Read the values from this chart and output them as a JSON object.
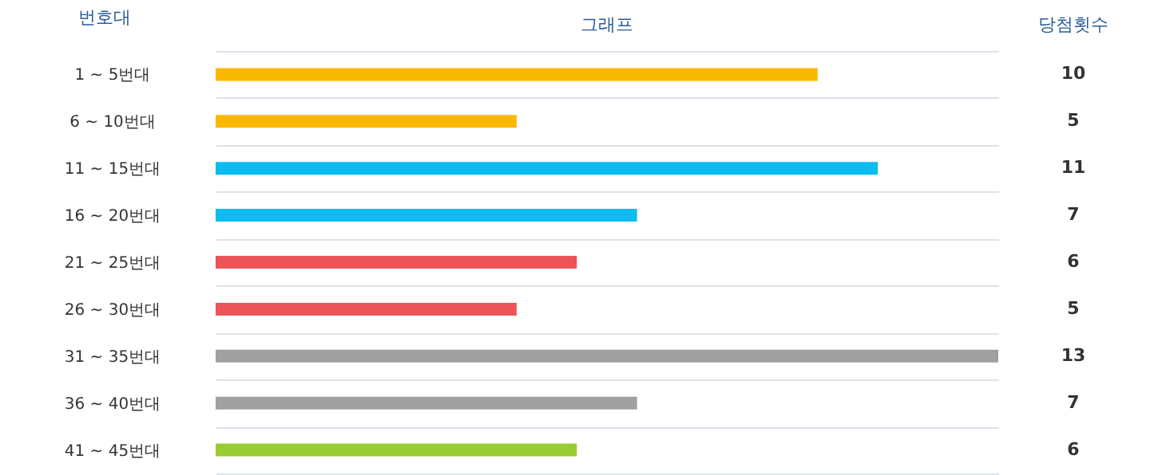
{
  "chart_data": {
    "type": "bar",
    "orientation": "horizontal",
    "title": "그래프",
    "ylabel": "번호대",
    "annotations": [
      "당첨횟수"
    ],
    "categories": [
      "1 ~ 5번대",
      "6 ~ 10번대",
      "11 ~ 15번대",
      "16 ~ 20번대",
      "21 ~ 25번대",
      "26 ~ 30번대",
      "31 ~ 35번대",
      "36 ~ 40번대",
      "41 ~ 45번대"
    ],
    "values": [
      10,
      5,
      11,
      7,
      6,
      5,
      13,
      7,
      6
    ],
    "colors": [
      "#fbb800",
      "#fbb800",
      "#0cbcf0",
      "#0cbcf0",
      "#ec5458",
      "#ec5458",
      "#a0a0a0",
      "#a0a0a0",
      "#99cc33"
    ],
    "xlim": [
      0,
      13
    ],
    "data_labels": true,
    "grid": "y",
    "tick_labels": "y",
    "legend": false
  }
}
